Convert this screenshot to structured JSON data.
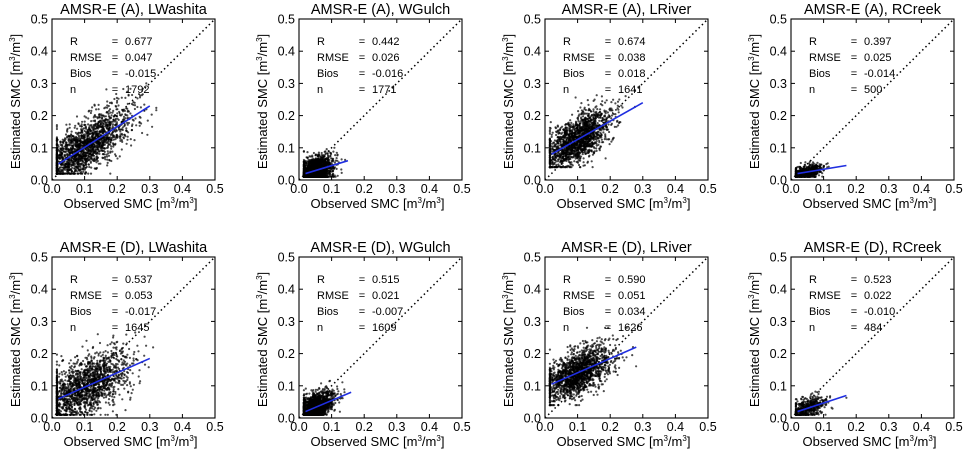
{
  "figure": {
    "xlabel_text": "Observed SMC [m",
    "ylabel_text": "Estimated SMC [m",
    "unit_sup": "3",
    "unit_close": "]",
    "unit_slash": "/m"
  },
  "chart_data": [
    {
      "type": "scatter",
      "title": "AMSR-E (A), LWashita",
      "xlabel": "Observed SMC [m3/m3]",
      "ylabel": "Estimated SMC [m3/m3]",
      "xlim": [
        0.0,
        0.5
      ],
      "ylim": [
        0.0,
        0.5
      ],
      "xticks": [
        "0.0",
        "0.1",
        "0.2",
        "0.3",
        "0.4",
        "0.5"
      ],
      "yticks": [
        "0.0",
        "0.1",
        "0.2",
        "0.3",
        "0.4",
        "0.5"
      ],
      "one_to_one_line": true,
      "stats": {
        "labels": [
          "R",
          "RMSE",
          "Bios",
          "n"
        ],
        "values": [
          "0.677",
          "0.047",
          "-0.015",
          "1792"
        ]
      },
      "fit_line": {
        "x": [
          0.02,
          0.3
        ],
        "y": [
          0.05,
          0.23
        ]
      },
      "cloud": {
        "x_center": 0.1,
        "x_spread": 0.07,
        "x_min": 0.015,
        "x_max": 0.32,
        "slope": 0.62,
        "intercept": 0.04,
        "noise": 0.04,
        "y_min": 0.02,
        "y_max": 0.3
      },
      "n_points": 1792
    },
    {
      "type": "scatter",
      "title": "AMSR-E (A), WGulch",
      "xlabel": "Observed SMC [m3/m3]",
      "ylabel": "Estimated SMC [m3/m3]",
      "xlim": [
        0.0,
        0.5
      ],
      "ylim": [
        0.0,
        0.5
      ],
      "xticks": [
        "0.0",
        "0.1",
        "0.2",
        "0.3",
        "0.4",
        "0.5"
      ],
      "yticks": [
        "0.0",
        "0.1",
        "0.2",
        "0.3",
        "0.4",
        "0.5"
      ],
      "one_to_one_line": true,
      "stats": {
        "labels": [
          "R",
          "RMSE",
          "Bios",
          "n"
        ],
        "values": [
          "0.442",
          "0.026",
          "-0.016",
          "1771"
        ]
      },
      "fit_line": {
        "x": [
          0.02,
          0.15
        ],
        "y": [
          0.02,
          0.06
        ]
      },
      "cloud": {
        "x_center": 0.05,
        "x_spread": 0.025,
        "x_min": 0.015,
        "x_max": 0.15,
        "slope": 0.3,
        "intercept": 0.012,
        "noise": 0.022,
        "y_min": 0.01,
        "y_max": 0.16
      },
      "n_points": 1771
    },
    {
      "type": "scatter",
      "title": "AMSR-E (A), LRiver",
      "xlabel": "Observed SMC [m3/m3]",
      "ylabel": "Estimated SMC [m3/m3]",
      "xlim": [
        0.0,
        0.5
      ],
      "ylim": [
        0.0,
        0.5
      ],
      "xticks": [
        "0.0",
        "0.1",
        "0.2",
        "0.3",
        "0.4",
        "0.5"
      ],
      "yticks": [
        "0.0",
        "0.1",
        "0.2",
        "0.3",
        "0.4",
        "0.5"
      ],
      "one_to_one_line": true,
      "stats": {
        "labels": [
          "R",
          "RMSE",
          "Bios",
          "n"
        ],
        "values": [
          "0.674",
          "0.038",
          "0.018",
          "1641"
        ]
      },
      "fit_line": {
        "x": [
          0.02,
          0.3
        ],
        "y": [
          0.08,
          0.24
        ]
      },
      "cloud": {
        "x_center": 0.1,
        "x_spread": 0.05,
        "x_min": 0.015,
        "x_max": 0.31,
        "slope": 0.57,
        "intercept": 0.07,
        "noise": 0.035,
        "y_min": 0.04,
        "y_max": 0.28
      },
      "n_points": 1641
    },
    {
      "type": "scatter",
      "title": "AMSR-E (A), RCreek",
      "xlabel": "Observed SMC [m3/m3]",
      "ylabel": "Estimated SMC [m3/m3]",
      "xlim": [
        0.0,
        0.5
      ],
      "ylim": [
        0.0,
        0.5
      ],
      "xticks": [
        "0.0",
        "0.1",
        "0.2",
        "0.3",
        "0.4",
        "0.5"
      ],
      "yticks": [
        "0.0",
        "0.1",
        "0.2",
        "0.3",
        "0.4",
        "0.5"
      ],
      "one_to_one_line": true,
      "stats": {
        "labels": [
          "R",
          "RMSE",
          "Bios",
          "n"
        ],
        "values": [
          "0.397",
          "0.025",
          "-0.014",
          "500"
        ]
      },
      "fit_line": {
        "x": [
          0.02,
          0.17
        ],
        "y": [
          0.02,
          0.045
        ]
      },
      "cloud": {
        "x_center": 0.05,
        "x_spread": 0.025,
        "x_min": 0.015,
        "x_max": 0.16,
        "slope": 0.2,
        "intercept": 0.015,
        "noise": 0.012,
        "y_min": 0.01,
        "y_max": 0.07
      },
      "n_points": 500
    },
    {
      "type": "scatter",
      "title": "AMSR-E (D), LWashita",
      "xlabel": "Observed SMC [m3/m3]",
      "ylabel": "Estimated SMC [m3/m3]",
      "xlim": [
        0.0,
        0.5
      ],
      "ylim": [
        0.0,
        0.5
      ],
      "xticks": [
        "0.0",
        "0.1",
        "0.2",
        "0.3",
        "0.4",
        "0.5"
      ],
      "yticks": [
        "0.0",
        "0.1",
        "0.2",
        "0.3",
        "0.4",
        "0.5"
      ],
      "one_to_one_line": true,
      "stats": {
        "labels": [
          "R",
          "RMSE",
          "Bios",
          "n"
        ],
        "values": [
          "0.537",
          "0.053",
          "-0.017",
          "1645"
        ]
      },
      "fit_line": {
        "x": [
          0.02,
          0.3
        ],
        "y": [
          0.06,
          0.185
        ]
      },
      "cloud": {
        "x_center": 0.1,
        "x_spread": 0.07,
        "x_min": 0.015,
        "x_max": 0.31,
        "slope": 0.45,
        "intercept": 0.05,
        "noise": 0.045,
        "y_min": 0.01,
        "y_max": 0.3
      },
      "n_points": 1645
    },
    {
      "type": "scatter",
      "title": "AMSR-E (D), WGulch",
      "xlabel": "Observed SMC [m3/m3]",
      "ylabel": "Estimated SMC [m3/m3]",
      "xlim": [
        0.0,
        0.5
      ],
      "ylim": [
        0.0,
        0.5
      ],
      "xticks": [
        "0.0",
        "0.1",
        "0.2",
        "0.3",
        "0.4",
        "0.5"
      ],
      "yticks": [
        "0.0",
        "0.1",
        "0.2",
        "0.3",
        "0.4",
        "0.5"
      ],
      "one_to_one_line": true,
      "stats": {
        "labels": [
          "R",
          "RMSE",
          "Bios",
          "n"
        ],
        "values": [
          "0.515",
          "0.021",
          "-0.007",
          "1609"
        ]
      },
      "fit_line": {
        "x": [
          0.02,
          0.16
        ],
        "y": [
          0.02,
          0.08
        ]
      },
      "cloud": {
        "x_center": 0.05,
        "x_spread": 0.028,
        "x_min": 0.015,
        "x_max": 0.16,
        "slope": 0.42,
        "intercept": 0.012,
        "noise": 0.02,
        "y_min": 0.01,
        "y_max": 0.14
      },
      "n_points": 1609
    },
    {
      "type": "scatter",
      "title": "AMSR-E (D), LRiver",
      "xlabel": "Observed SMC [m3/m3]",
      "ylabel": "Estimated SMC [m3/m3]",
      "xlim": [
        0.0,
        0.5
      ],
      "ylim": [
        0.0,
        0.5
      ],
      "xticks": [
        "0.0",
        "0.1",
        "0.2",
        "0.3",
        "0.4",
        "0.5"
      ],
      "yticks": [
        "0.0",
        "0.1",
        "0.2",
        "0.3",
        "0.4",
        "0.5"
      ],
      "one_to_one_line": true,
      "stats": {
        "labels": [
          "R",
          "RMSE",
          "Bios",
          "n"
        ],
        "values": [
          "0.590",
          "0.051",
          "0.034",
          "1626"
        ]
      },
      "fit_line": {
        "x": [
          0.02,
          0.28
        ],
        "y": [
          0.105,
          0.22
        ]
      },
      "cloud": {
        "x_center": 0.1,
        "x_spread": 0.055,
        "x_min": 0.015,
        "x_max": 0.29,
        "slope": 0.45,
        "intercept": 0.095,
        "noise": 0.035,
        "y_min": 0.04,
        "y_max": 0.28
      },
      "n_points": 1626
    },
    {
      "type": "scatter",
      "title": "AMSR-E (D), RCreek",
      "xlabel": "Observed SMC [m3/m3]",
      "ylabel": "Estimated SMC [m3/m3]",
      "xlim": [
        0.0,
        0.5
      ],
      "ylim": [
        0.0,
        0.5
      ],
      "xticks": [
        "0.0",
        "0.1",
        "0.2",
        "0.3",
        "0.4",
        "0.5"
      ],
      "yticks": [
        "0.0",
        "0.1",
        "0.2",
        "0.3",
        "0.4",
        "0.5"
      ],
      "one_to_one_line": true,
      "stats": {
        "labels": [
          "R",
          "RMSE",
          "Bios",
          "n"
        ],
        "values": [
          "0.523",
          "0.022",
          "-0.010",
          "484"
        ]
      },
      "fit_line": {
        "x": [
          0.02,
          0.17
        ],
        "y": [
          0.02,
          0.07
        ]
      },
      "cloud": {
        "x_center": 0.05,
        "x_spread": 0.028,
        "x_min": 0.015,
        "x_max": 0.17,
        "slope": 0.33,
        "intercept": 0.013,
        "noise": 0.015,
        "y_min": 0.01,
        "y_max": 0.09
      },
      "n_points": 484
    }
  ],
  "colors": {
    "points": "#000000",
    "fit_line": "#1f2ee0",
    "one_to_one": "#000000",
    "axes": "#000000"
  }
}
